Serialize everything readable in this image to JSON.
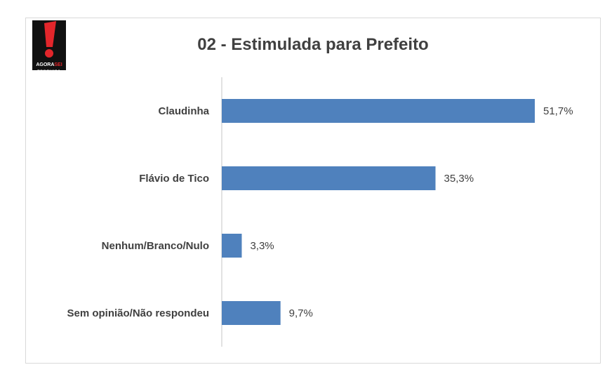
{
  "logo": {
    "line1a": "AGORA",
    "line1b": "SEI",
    "line2": "PESQUISA"
  },
  "chart_data": {
    "type": "bar",
    "orientation": "horizontal",
    "title": "02 - Estimulada para Prefeito",
    "categories": [
      "Claudinha",
      "Flávio de Tico",
      "Nenhum/Branco/Nulo",
      "Sem opinião/Não respondeu"
    ],
    "values": [
      51.7,
      35.3,
      3.3,
      9.7
    ],
    "value_labels": [
      "51,7%",
      "35,3%",
      "3,3%",
      "9,7%"
    ],
    "xlim": [
      0,
      51.7
    ],
    "grid": false,
    "legend": "none",
    "bar_color": "#4f81bd",
    "axis_color": "#d9d9d9",
    "text_color": "#404040"
  }
}
